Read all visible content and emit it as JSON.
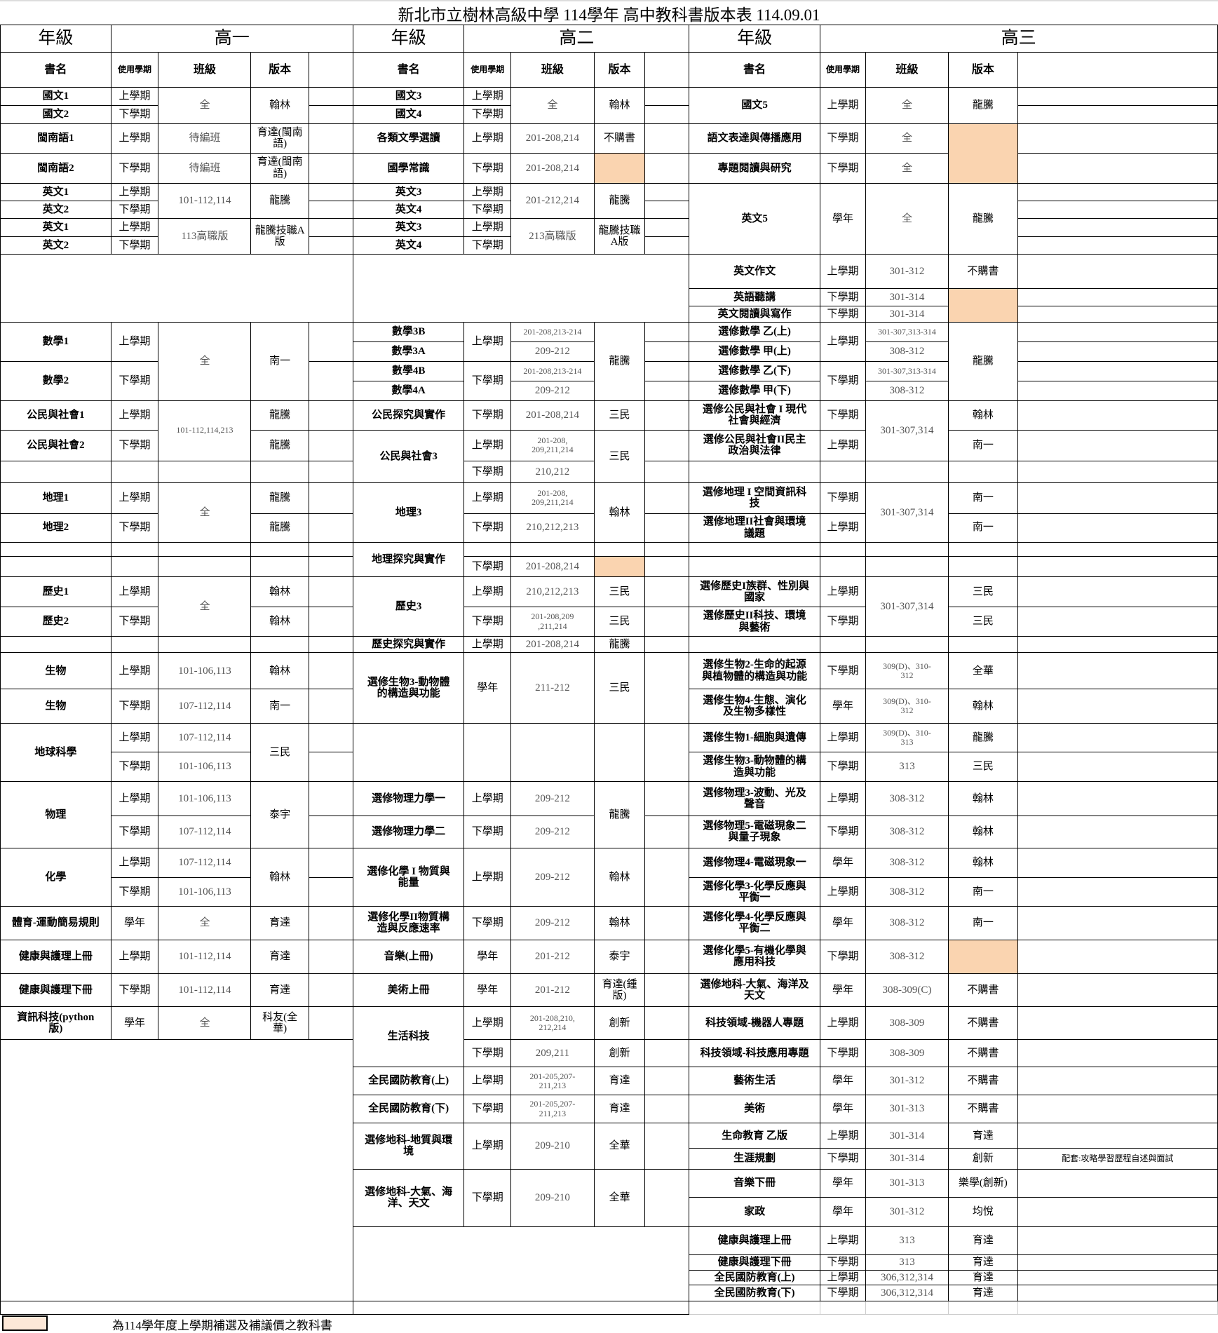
{
  "title": "新北市立樹林高級中學  114學年 高中教科書版本表 114.09.01",
  "highlight_color": "#fad4b0",
  "grade_label": "年級",
  "grades": [
    "高一",
    "高二",
    "高三"
  ],
  "columns": [
    "書名",
    "使用學期",
    "班級",
    "版本"
  ],
  "legend": "為114學年度上學期補選及補議價之教科書",
  "g1": [
    {
      "name": "國文1",
      "term": "上學期",
      "class": "全",
      "edition": "翰林"
    },
    {
      "name": "國文2",
      "term": "下學期"
    },
    {
      "name": "閩南語1",
      "term": "上學期",
      "class": "待編班",
      "edition": "育達(閩南\n語)"
    },
    {
      "name": "閩南語2",
      "term": "下學期",
      "class": "待編班",
      "edition": "育達(閩南\n語)"
    },
    {
      "name": "英文1",
      "term": "上學期",
      "class": "101-112,114",
      "edition": "龍騰"
    },
    {
      "name": "英文2",
      "term": "下學期"
    },
    {
      "name": "英文1",
      "term": "上學期",
      "class": "113高職版",
      "edition": "龍騰技職A\n版"
    },
    {
      "name": "英文2",
      "term": "下學期"
    },
    {},
    {
      "name": "數學1",
      "term": "上學期",
      "class": "全",
      "edition": "南一"
    },
    {
      "name": "數學2",
      "term": "下學期"
    },
    {
      "name": "公民與社會1",
      "term": "上學期",
      "class": "101-112,114,213",
      "edition": "龍騰"
    },
    {
      "name": "公民與社會2",
      "term": "下學期",
      "edition": "龍騰"
    },
    {},
    {
      "name": "地理1",
      "term": "上學期",
      "class": "全",
      "edition": "龍騰"
    },
    {
      "name": "地理2",
      "term": "下學期",
      "edition": "龍騰"
    },
    {},
    {},
    {
      "name": "歷史1",
      "term": "上學期",
      "class": "全",
      "edition": "翰林"
    },
    {
      "name": "歷史2",
      "term": "下學期",
      "edition": "翰林"
    },
    {},
    {
      "name": "生物",
      "term": "上學期",
      "class": "101-106,113",
      "edition": "翰林"
    },
    {
      "name": "生物",
      "term": "下學期",
      "class": "107-112,114",
      "edition": "南一"
    },
    {
      "name": "地球科學",
      "term": "上學期",
      "class": "107-112,114",
      "edition": "三民"
    },
    {
      "term": "下學期",
      "class": "101-106,113"
    },
    {
      "name": "物理",
      "term": "上學期",
      "class": "101-106,113",
      "edition": "泰宇"
    },
    {
      "term": "下學期",
      "class": "107-112,114"
    },
    {
      "name": "化學",
      "term": "上學期",
      "class": "107-112,114",
      "edition": "翰林"
    },
    {
      "term": "下學期",
      "class": "101-106,113"
    },
    {
      "name": "體育-運動簡易規則",
      "term": "學年",
      "class": "全",
      "edition": "育達"
    },
    {
      "name": "健康與護理上冊",
      "term": "上學期",
      "class": "101-112,114",
      "edition": "育達"
    },
    {
      "name": "健康與護理下冊",
      "term": "下學期",
      "class": "101-112,114",
      "edition": "育達"
    },
    {
      "name": "資訊科技(python\n版)",
      "term": "學年",
      "class": "全",
      "edition": "科友(全\n華)"
    },
    {},
    {}
  ],
  "g2": [
    {
      "name": "國文3",
      "term": "上學期",
      "class": "全",
      "edition": "翰林"
    },
    {
      "name": "國文4",
      "term": "下學期"
    },
    {
      "name": "各類文學選讀",
      "term": "上學期",
      "class": "201-208,214",
      "edition": "不購書"
    },
    {
      "name": "國學常識",
      "term": "下學期",
      "class": "201-208,214",
      "hl": true
    },
    {
      "name": "英文3",
      "term": "上學期",
      "class": "201-212,214",
      "edition": "龍騰"
    },
    {
      "name": "英文4",
      "term": "下學期"
    },
    {
      "name": "英文3",
      "term": "上學期",
      "class": "213高職版",
      "edition": "龍騰技職\nA版"
    },
    {
      "name": "英文4",
      "term": "下學期"
    },
    {},
    {
      "name": "數學3B",
      "term": "上學期",
      "class": "201-208,213-214",
      "edition": "龍騰"
    },
    {
      "name": "數學3A",
      "class": "209-212"
    },
    {
      "name": "數學4B",
      "term": "下學期",
      "class": "201-208,213-214"
    },
    {
      "name": "數學4A",
      "class": "209-212"
    },
    {
      "name": "公民探究與實作",
      "term": "下學期",
      "class": "201-208,214",
      "edition": "三民"
    },
    {
      "name": "公民與社會3",
      "term": "上學期",
      "class": "201-208,\n209,211,214",
      "edition": "三民"
    },
    {
      "term": "下學期",
      "class": "210,212"
    },
    {
      "name": "地理3",
      "term": "上學期",
      "class": "201-208,\n209,211,214",
      "edition": "翰林"
    },
    {
      "term": "下學期",
      "class": "210,212,213"
    },
    {
      "name": "地理探究與實作"
    },
    {
      "term": "下學期",
      "class": "201-208,214",
      "hl": true
    },
    {
      "name": "歷史3",
      "term": "上學期",
      "class": "210,212,213",
      "edition": "三民"
    },
    {
      "term": "下學期",
      "class": "201-208,209\n,211,214",
      "edition": "三民"
    },
    {
      "name": "歷史探究與實作",
      "term": "上學期",
      "class": "201-208,214",
      "edition": "龍騰"
    },
    {
      "name": "選修生物3-動物體\n的構造與功能",
      "term": "學年",
      "class": "211-212",
      "edition": "三民"
    },
    {},
    {
      "name": "選修物理力學一",
      "term": "上學期",
      "class": "209-212",
      "edition": "龍騰"
    },
    {
      "name": "選修物理力學二",
      "term": "下學期",
      "class": "209-212"
    },
    {
      "name": "選修化學 I 物質與\n能量",
      "term": "上學期",
      "class": "209-212",
      "edition": "翰林"
    },
    {
      "name": "選修化學II物質構\n造與反應速率",
      "term": "下學期",
      "class": "209-212",
      "edition": "翰林"
    },
    {
      "name": "音樂(上冊)",
      "term": "學年",
      "class": "201-212",
      "edition": "泰宇"
    },
    {
      "name": "美術上冊",
      "term": "學年",
      "class": "201-212",
      "edition": "育達(鍾\n版)"
    },
    {
      "name": "生活科技",
      "term": "上學期",
      "class": "201-208,210,\n212,214",
      "edition": "創新"
    },
    {
      "term": "下學期",
      "class": "209,211",
      "edition": "創新"
    },
    {
      "name": "全民國防教育(上)",
      "term": "上學期",
      "class": "201-205,207-\n211,213",
      "edition": "育達"
    },
    {
      "name": "全民國防教育(下)",
      "term": "下學期",
      "class": "201-205,207-\n211,213",
      "edition": "育達"
    },
    {
      "name": "選修地科-地質與環\n境",
      "term": "上學期",
      "class": "209-210",
      "edition": "全華"
    },
    {
      "name": "選修地科-大氣、海\n洋、天文",
      "term": "下學期",
      "class": "209-210",
      "edition": "全華"
    },
    {},
    {}
  ],
  "g3": [
    {
      "name": "國文5",
      "term": "上學期",
      "class": "全",
      "edition": "龍騰"
    },
    {},
    {
      "name": "語文表達與傳播應用",
      "term": "下學期",
      "class": "全",
      "hl": true
    },
    {
      "name": "專題閱讀與研究",
      "term": "下學期",
      "class": "全"
    },
    {
      "name": "英文5",
      "term": "學年",
      "class": "全",
      "edition": "龍騰"
    },
    {},
    {},
    {},
    {
      "name": "英文作文",
      "term": "上學期",
      "class": "301-312",
      "edition": "不購書"
    },
    {
      "name": "英語聽講",
      "term": "下學期",
      "class": "301-314",
      "hl": true
    },
    {
      "name": "英文閱讀與寫作",
      "term": "下學期",
      "class": "301-314"
    },
    {
      "name": "選修數學  乙(上)",
      "term": "上學期",
      "class": "301-307,313-314",
      "edition": "龍騰"
    },
    {
      "name": "選修數學  甲(上)",
      "class": "308-312"
    },
    {
      "name": "選修數學  乙(下)",
      "term": "下學期",
      "class": "301-307,313-314"
    },
    {
      "name": "選修數學  甲(下)",
      "class": "308-312"
    },
    {
      "name": "選修公民與社會 I 現代\n社會與經濟",
      "term": "下學期",
      "class": "301-307,314",
      "edition": "翰林"
    },
    {
      "name": "選修公民與社會II民主\n政治與法律",
      "term": "上學期",
      "edition": "南一"
    },
    {},
    {
      "name": "選修地理 I 空間資訊科\n技",
      "term": "下學期",
      "class": "301-307,314",
      "edition": "南一"
    },
    {
      "name": "選修地理II社會與環境\n議題",
      "term": "上學期",
      "edition": "南一"
    },
    {},
    {},
    {
      "name": "選修歷史I族群、性別與\n國家",
      "term": "上學期",
      "class": "301-307,314",
      "edition": "三民"
    },
    {
      "name": "選修歷史II科技、環境\n與藝術",
      "term": "下學期",
      "edition": "三民"
    },
    {},
    {
      "name": "選修生物2-生命的起源\n與植物體的構造與功能",
      "term": "下學期",
      "class": "309(D)、310-\n312",
      "edition": "全華"
    },
    {
      "name": "選修生物4-生態、演化\n及生物多樣性",
      "term": "學年",
      "class": "309(D)、310-\n312",
      "edition": "翰林"
    },
    {
      "name": "選修生物1-細胞與遺傳",
      "term": "上學期",
      "class": "309(D)、310-\n313",
      "edition": "龍騰"
    },
    {
      "name": "選修生物3-動物體的構\n造與功能",
      "term": "下學期",
      "class": "313",
      "edition": "三民"
    },
    {
      "name": "選修物理3-波動、光及\n聲音",
      "term": "上學期",
      "class": "308-312",
      "edition": "翰林"
    },
    {
      "name": "選修物理5-電磁現象二\n與量子現象",
      "term": "下學期",
      "class": "308-312",
      "edition": "翰林"
    },
    {
      "name": "選修物理4-電磁現象一",
      "term": "學年",
      "class": "308-312",
      "edition": "翰林"
    },
    {
      "name": "選修化學3-化學反應與\n平衡一",
      "term": "上學期",
      "class": "308-312",
      "edition": "南一"
    },
    {
      "name": "選修化學4-化學反應與\n平衡二",
      "term": "學年",
      "class": "308-312",
      "edition": "南一"
    },
    {
      "name": "選修化學5-有機化學與\n應用科技",
      "term": "下學期",
      "class": "308-312",
      "hl": true
    },
    {
      "name": "選修地科-大氣、海洋及\n天文",
      "term": "學年",
      "class": "308-309(C)",
      "edition": "不購書"
    },
    {
      "name": "科技領域-機器人專題",
      "term": "上學期",
      "class": "308-309",
      "edition": "不購書"
    },
    {
      "name": "科技領域-科技應用專題",
      "term": "下學期",
      "class": "308-309",
      "edition": "不購書"
    },
    {
      "name": "藝術生活",
      "term": "學年",
      "class": "301-312",
      "edition": "不購書"
    },
    {
      "name": "美術",
      "term": "學年",
      "class": "301-313",
      "edition": "不購書"
    },
    {
      "name": "生命教育  乙版",
      "term": "上學期",
      "class": "301-314",
      "edition": "育達"
    },
    {
      "name": "生涯規劃",
      "term": "下學期",
      "class": "301-314",
      "edition": "創新",
      "note": "配套:攻略學習歷程自述與面試"
    },
    {
      "name": "音樂下冊",
      "term": "學年",
      "class": "301-313",
      "edition": "樂學(創新)"
    },
    {
      "name": "家政",
      "term": "學年",
      "class": "301-312",
      "edition": "均悅"
    },
    {
      "name": "健康與護理上冊",
      "term": "上學期",
      "class": "313",
      "edition": "育達"
    },
    {
      "name": "健康與護理下冊",
      "term": "下學期",
      "class": "313",
      "edition": "育達"
    },
    {
      "name": "全民國防教育(上)",
      "term": "上學期",
      "class": "306,312,314",
      "edition": "育達"
    },
    {
      "name": "全民國防教育(下)",
      "term": "下學期",
      "class": "306,312,314",
      "edition": "育達"
    },
    {}
  ]
}
